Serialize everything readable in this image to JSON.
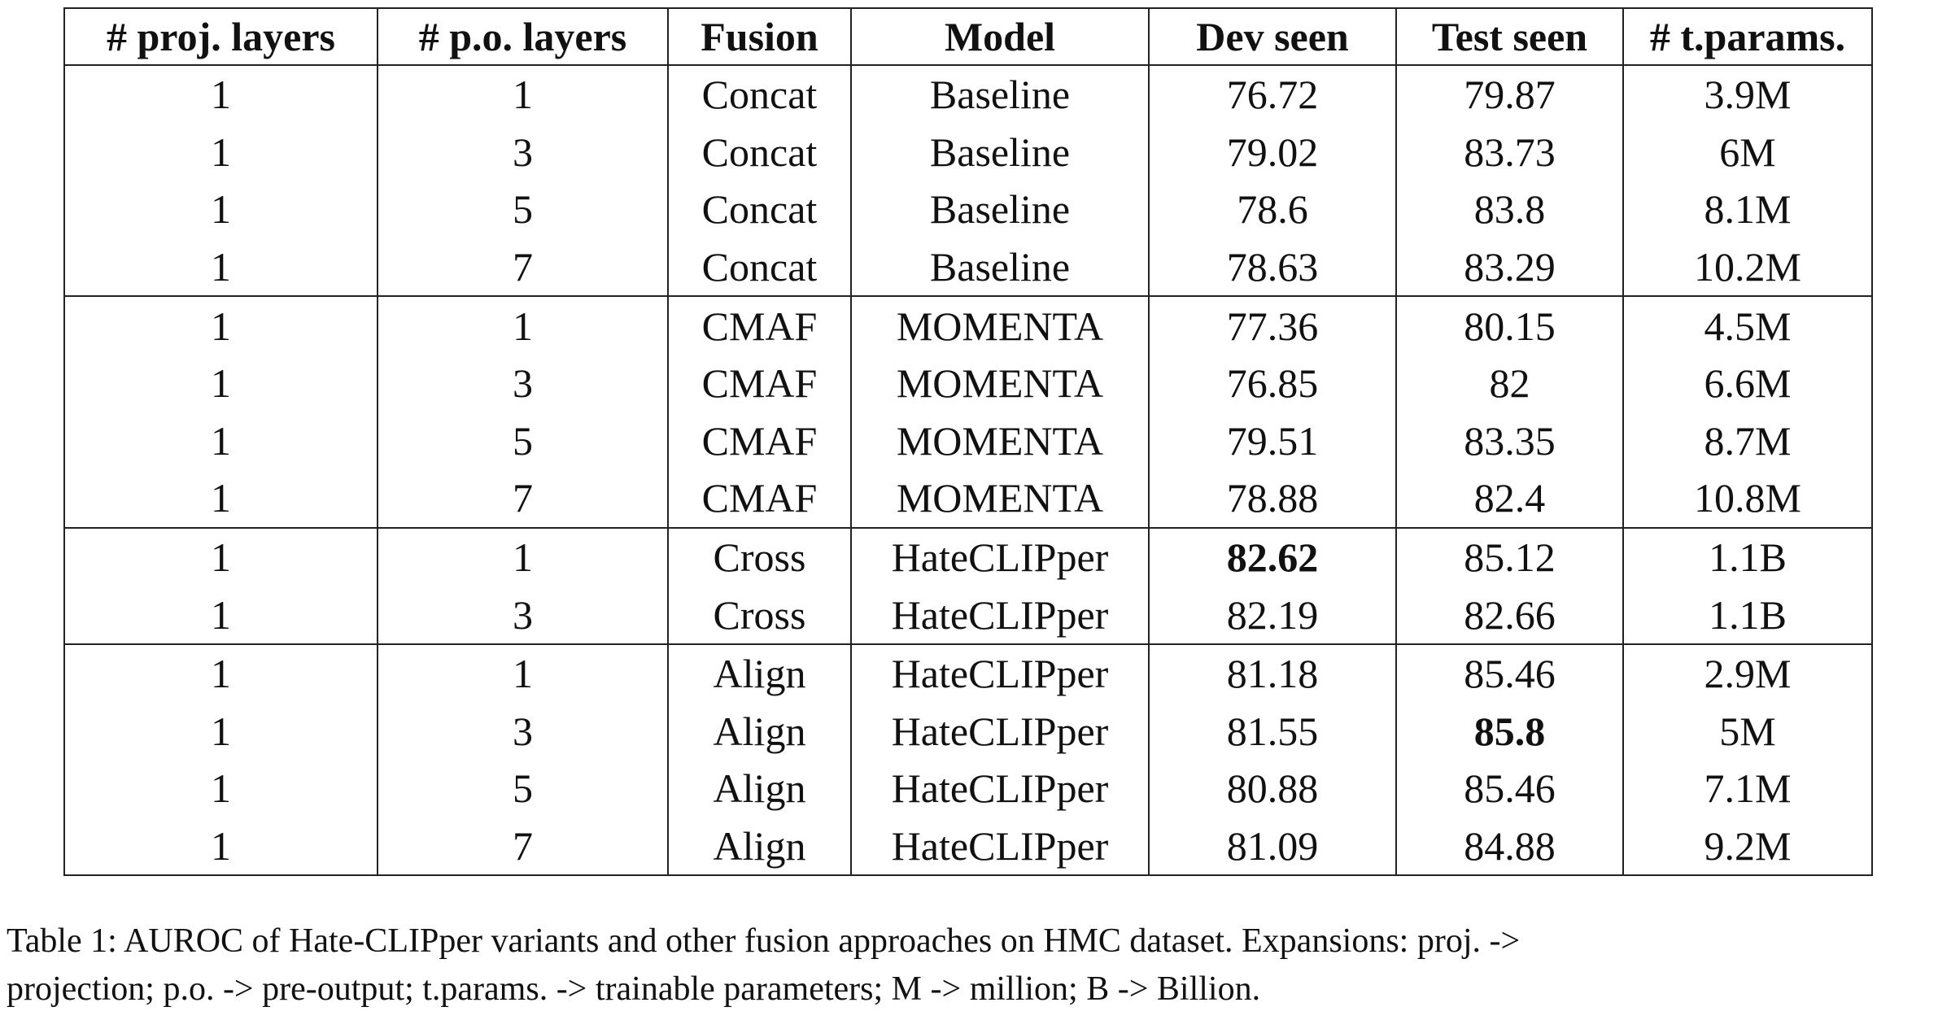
{
  "table": {
    "headers": [
      "# proj. layers",
      "# p.o. layers",
      "Fusion",
      "Model",
      "Dev seen",
      "Test seen",
      "# t.params."
    ],
    "groups": [
      {
        "rows": [
          [
            "1",
            "1",
            "Concat",
            "Baseline",
            "76.72",
            "79.87",
            "3.9M"
          ],
          [
            "1",
            "3",
            "Concat",
            "Baseline",
            "79.02",
            "83.73",
            "6M"
          ],
          [
            "1",
            "5",
            "Concat",
            "Baseline",
            "78.6",
            "83.8",
            "8.1M"
          ],
          [
            "1",
            "7",
            "Concat",
            "Baseline",
            "78.63",
            "83.29",
            "10.2M"
          ]
        ]
      },
      {
        "rows": [
          [
            "1",
            "1",
            "CMAF",
            "MOMENTA",
            "77.36",
            "80.15",
            "4.5M"
          ],
          [
            "1",
            "3",
            "CMAF",
            "MOMENTA",
            "76.85",
            "82",
            "6.6M"
          ],
          [
            "1",
            "5",
            "CMAF",
            "MOMENTA",
            "79.51",
            "83.35",
            "8.7M"
          ],
          [
            "1",
            "7",
            "CMAF",
            "MOMENTA",
            "78.88",
            "82.4",
            "10.8M"
          ]
        ]
      },
      {
        "rows": [
          [
            "1",
            "1",
            "Cross",
            "HateCLIPper",
            "82.62",
            "85.12",
            "1.1B"
          ],
          [
            "1",
            "3",
            "Cross",
            "HateCLIPper",
            "82.19",
            "82.66",
            "1.1B"
          ]
        ]
      },
      {
        "rows": [
          [
            "1",
            "1",
            "Align",
            "HateCLIPper",
            "81.18",
            "85.46",
            "2.9M"
          ],
          [
            "1",
            "3",
            "Align",
            "HateCLIPper",
            "81.55",
            "85.8",
            "5M"
          ],
          [
            "1",
            "5",
            "Align",
            "HateCLIPper",
            "80.88",
            "85.46",
            "7.1M"
          ],
          [
            "1",
            "7",
            "Align",
            "HateCLIPper",
            "81.09",
            "84.88",
            "9.2M"
          ]
        ]
      }
    ]
  },
  "caption": {
    "line1": "Table 1: AUROC of Hate-CLIPper variants and other fusion approaches on HMC dataset. Expansions: proj. ->",
    "line2": "projection; p.o. -> pre-output; t.params. -> trainable parameters; M -> million; B -> Billion."
  }
}
